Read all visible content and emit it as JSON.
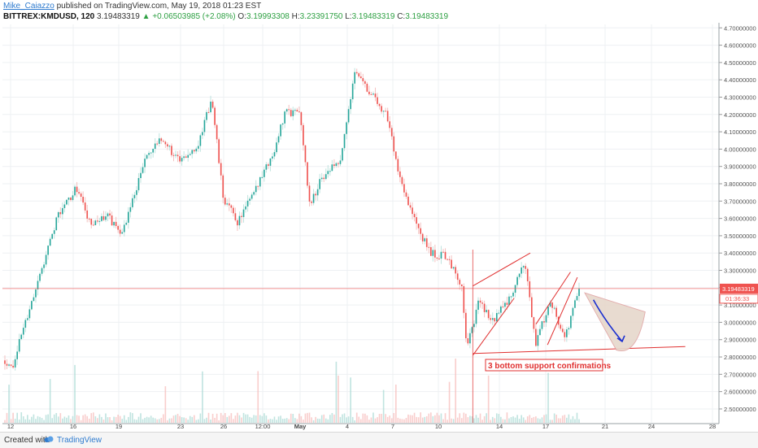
{
  "header": {
    "author": "Mike_Caiazzo",
    "published": "published on TradingView.com, May 19, 2018 01:23 EST",
    "symbol": "BITTREX:KMDUSD, 120",
    "last": "3.19483319",
    "change": "▲ +0.06503985 (+2.08%)",
    "open_label": "O:",
    "open": "3.19993308",
    "high_label": "H:",
    "high": "3.23391750",
    "low_label": "L:",
    "low": "3.19483319",
    "close_label": "C:",
    "close": "3.19483319"
  },
  "footer": {
    "created_with": "Created with",
    "brand": "TradingView"
  },
  "colors": {
    "up": "#26a69a",
    "down": "#ef5350",
    "price_line": "#ef5350",
    "pattern": "#e03030",
    "arrow": "#1a2fd0"
  },
  "chart_data": {
    "type": "candlestick",
    "title": "",
    "y_axis": {
      "position": "right",
      "min": 2.42,
      "max": 4.72,
      "ticks": [
        "4.70000000",
        "4.60000000",
        "4.50000000",
        "4.40000000",
        "4.30000000",
        "4.20000000",
        "4.10000000",
        "4.00000000",
        "3.90000000",
        "3.80000000",
        "3.70000000",
        "3.60000000",
        "3.50000000",
        "3.40000000",
        "3.30000000",
        "3.20000000",
        "3.10000000",
        "3.00000000",
        "2.90000000",
        "2.80000000",
        "2.70000000",
        "2.60000000",
        "2.50000000"
      ]
    },
    "x_axis": {
      "ticks": [
        "12",
        "16",
        "19",
        "23",
        "26",
        "12:00",
        "May",
        "4",
        "7",
        "10",
        "14",
        "17",
        "21",
        "24",
        "28"
      ]
    },
    "current_price": "3.19483319",
    "countdown": "01:36:33",
    "grid": true,
    "waypoints": [
      [
        2.78,
        0.0
      ],
      [
        2.75,
        1.4
      ],
      [
        3.0,
        3.5
      ],
      [
        3.26,
        6.0
      ],
      [
        3.6,
        9.0
      ],
      [
        3.78,
        12.5
      ],
      [
        3.55,
        15.0
      ],
      [
        3.62,
        17.5
      ],
      [
        3.52,
        20.5
      ],
      [
        3.95,
        24.5
      ],
      [
        4.06,
        27.5
      ],
      [
        3.92,
        30.5
      ],
      [
        4.05,
        34.0
      ],
      [
        4.3,
        36.0
      ],
      [
        3.72,
        38.0
      ],
      [
        3.58,
        40.5
      ],
      [
        3.75,
        43.5
      ],
      [
        3.96,
        46.5
      ],
      [
        4.22,
        49.0
      ],
      [
        4.2,
        51.5
      ],
      [
        3.68,
        53.0
      ],
      [
        3.85,
        55.5
      ],
      [
        3.95,
        58.5
      ],
      [
        4.47,
        61.0
      ],
      [
        4.33,
        63.5
      ],
      [
        4.2,
        66.5
      ],
      [
        3.88,
        68.5
      ],
      [
        3.62,
        71.0
      ],
      [
        3.4,
        74.0
      ],
      [
        3.38,
        77.0
      ],
      [
        3.22,
        79.5
      ],
      [
        2.85,
        80.5
      ],
      [
        3.12,
        82.5
      ],
      [
        3.0,
        85.0
      ],
      [
        3.15,
        88.0
      ],
      [
        3.35,
        90.5
      ],
      [
        2.87,
        92.5
      ],
      [
        3.14,
        95.0
      ],
      [
        2.9,
        97.5
      ],
      [
        3.08,
        99.0
      ],
      [
        3.19,
        100.0
      ]
    ],
    "annotations": {
      "text": "3 bottom support confirmations",
      "support_line": {
        "from": [
          81.5,
          2.82
        ],
        "to": [
          118.5,
          2.86
        ]
      },
      "channel_1": {
        "lower_from": [
          81.5,
          2.81
        ],
        "lower_to": [
          88.7,
          3.14
        ],
        "upper_from": [
          81.5,
          3.21
        ],
        "upper_to": [
          91.5,
          3.4
        ]
      },
      "channel_2": {
        "lower_from": [
          94.5,
          2.87
        ],
        "lower_to": [
          99.7,
          3.26
        ],
        "upper_from": [
          92.5,
          2.99
        ],
        "upper_to": [
          98.5,
          3.29
        ]
      },
      "projection_fan": {
        "apex": [
          101.0,
          3.17
        ],
        "edge_upper": [
          111.5,
          3.06
        ],
        "edge_lower": [
          106.5,
          2.84
        ]
      },
      "arrow": {
        "from": [
          102.5,
          3.13
        ],
        "to": [
          107.5,
          2.89
        ]
      },
      "marker": {
        "at": [
          81.5,
          2.38
        ],
        "top": 3.42
      }
    }
  }
}
